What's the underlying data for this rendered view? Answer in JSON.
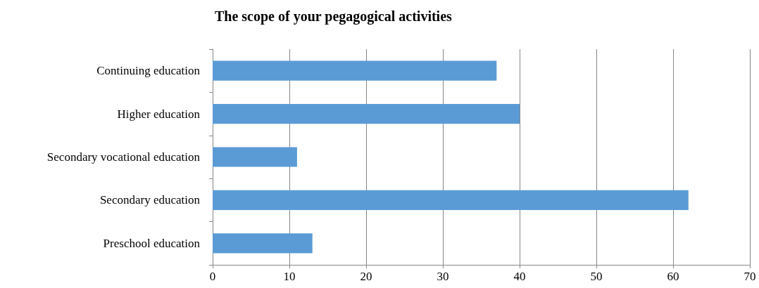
{
  "chart_data": {
    "type": "bar",
    "orientation": "horizontal",
    "title": "The scope of your pegagogical activities",
    "categories": [
      "Continuing education",
      "Higher education",
      "Secondary vocational education",
      "Secondary education",
      "Preschool education"
    ],
    "values": [
      37,
      40,
      11,
      62,
      13
    ],
    "color": "#5b9bd5",
    "xlim": [
      0,
      70
    ],
    "xticks": [
      0,
      10,
      20,
      30,
      40,
      50,
      60,
      70
    ],
    "grid": "x"
  }
}
